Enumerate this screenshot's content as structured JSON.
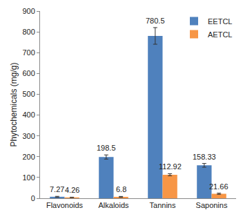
{
  "chart_data": {
    "type": "bar",
    "y_label": "Phytochemicals (mg/g)",
    "categories": [
      "Flavonoids",
      "Alkaloids",
      "Tannins",
      "Saponins"
    ],
    "series": [
      {
        "name": "EETCL",
        "color": "#4f81bd",
        "values": [
          7.27,
          198.5,
          780.5,
          158.33
        ],
        "errors": [
          2,
          10,
          40,
          9
        ]
      },
      {
        "name": "AETCL",
        "color": "#f79646",
        "values": [
          4.26,
          6.8,
          112.92,
          21.66
        ],
        "errors": [
          1,
          2,
          5,
          3
        ]
      }
    ],
    "ylim": [
      0,
      900
    ],
    "yticks": [
      0,
      100,
      200,
      300,
      400,
      500,
      600,
      700,
      800,
      900
    ],
    "grid": false,
    "legend": "top right",
    "data_labels": true
  }
}
